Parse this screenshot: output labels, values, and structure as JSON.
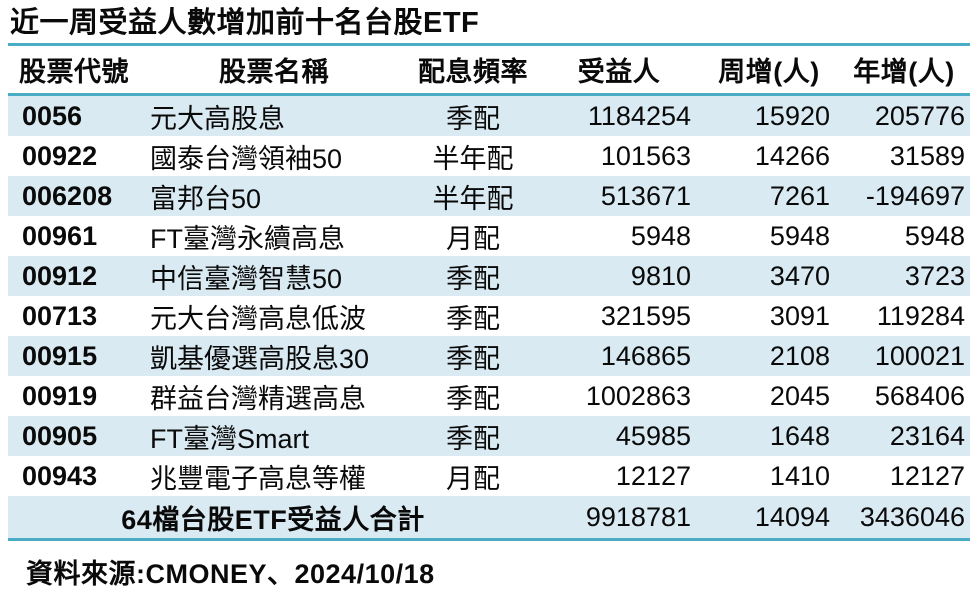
{
  "chart_data": {
    "type": "table",
    "title": "近一周受益人數增加前十名台股ETF",
    "columns": [
      "股票代號",
      "股票名稱",
      "配息頻率",
      "受益人",
      "周增(人)",
      "年增(人)"
    ],
    "rows": [
      {
        "code": "0056",
        "name": "元大高股息",
        "freq": "季配",
        "holders": 1184254,
        "week_change": 15920,
        "year_change": 205776
      },
      {
        "code": "00922",
        "name": "國泰台灣領袖50",
        "freq": "半年配",
        "holders": 101563,
        "week_change": 14266,
        "year_change": 31589
      },
      {
        "code": "006208",
        "name": "富邦台50",
        "freq": "半年配",
        "holders": 513671,
        "week_change": 7261,
        "year_change": -194697
      },
      {
        "code": "00961",
        "name": "FT臺灣永續高息",
        "freq": "月配",
        "holders": 5948,
        "week_change": 5948,
        "year_change": 5948
      },
      {
        "code": "00912",
        "name": "中信臺灣智慧50",
        "freq": "季配",
        "holders": 9810,
        "week_change": 3470,
        "year_change": 3723
      },
      {
        "code": "00713",
        "name": "元大台灣高息低波",
        "freq": "季配",
        "holders": 321595,
        "week_change": 3091,
        "year_change": 119284
      },
      {
        "code": "00915",
        "name": "凱基優選高股息30",
        "freq": "季配",
        "holders": 146865,
        "week_change": 2108,
        "year_change": 100021
      },
      {
        "code": "00919",
        "name": "群益台灣精選高息",
        "freq": "季配",
        "holders": 1002863,
        "week_change": 2045,
        "year_change": 568406
      },
      {
        "code": "00905",
        "name": "FT臺灣Smart",
        "freq": "季配",
        "holders": 45985,
        "week_change": 1648,
        "year_change": 23164
      },
      {
        "code": "00943",
        "name": "兆豐電子高息等權",
        "freq": "月配",
        "holders": 12127,
        "week_change": 1410,
        "year_change": 12127
      }
    ],
    "total_row": {
      "label": "64檔台股ETF受益人合計",
      "holders": 9918781,
      "week_change": 14094,
      "year_change": 3436046
    },
    "source": "資料來源:CMONEY、2024/10/18",
    "layout": {
      "stripe_pattern": "odd-rows-and-total",
      "grid": "off",
      "header_rule": true,
      "title_rule": true,
      "bottom_rule": true
    }
  },
  "colors": {
    "accent": "#4BACC6",
    "stripe": "#D9EAF2",
    "text": "#0a0a0a",
    "background": "#FFFFFF"
  }
}
